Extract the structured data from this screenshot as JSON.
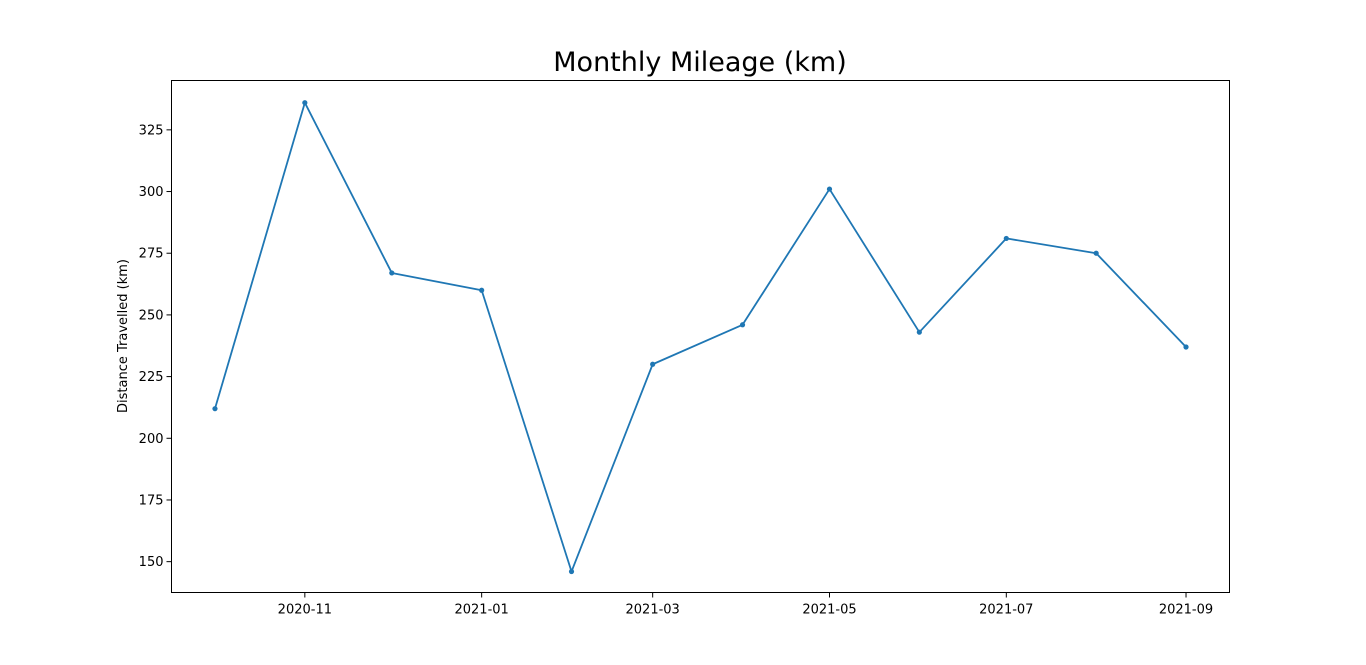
{
  "chart_data": {
    "type": "line",
    "title": "Monthly Mileage (km)",
    "xlabel": "",
    "ylabel": "Distance Travelled (km)",
    "x_type": "date",
    "x": [
      "2020-10-01",
      "2020-11-01",
      "2020-12-01",
      "2021-01-01",
      "2021-02-01",
      "2021-03-01",
      "2021-04-01",
      "2021-05-01",
      "2021-06-01",
      "2021-07-01",
      "2021-08-01",
      "2021-09-01"
    ],
    "series": [
      {
        "values": [
          212,
          336,
          267,
          260,
          146,
          230,
          246,
          301,
          243,
          281,
          275,
          237
        ],
        "color": "#1f77b4",
        "marker": "circle"
      }
    ],
    "xlim": [
      "2020-09-16",
      "2021-09-16"
    ],
    "ylim": [
      137.5,
      345
    ],
    "xticks": [
      "2020-11",
      "2021-01",
      "2021-03",
      "2021-05",
      "2021-07",
      "2021-09"
    ],
    "yticks": [
      150,
      175,
      200,
      225,
      250,
      275,
      300,
      325
    ],
    "grid": false,
    "legend": "none"
  }
}
